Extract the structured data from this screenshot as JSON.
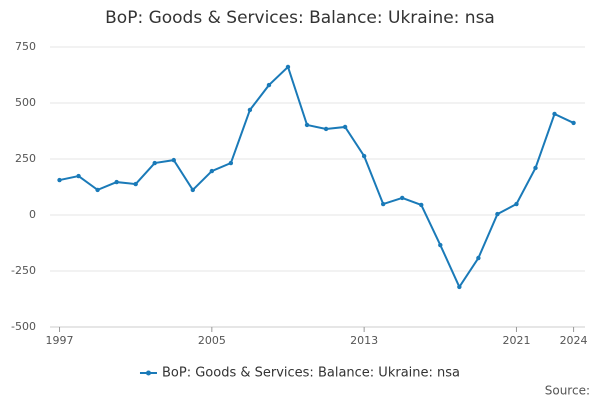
{
  "chart_data": {
    "type": "line",
    "title": "BoP: Goods & Services: Balance: Ukraine: nsa",
    "x": [
      1997,
      1998,
      1999,
      2000,
      2001,
      2002,
      2003,
      2004,
      2005,
      2006,
      2007,
      2008,
      2009,
      2010,
      2011,
      2012,
      2013,
      2014,
      2015,
      2016,
      2017,
      2018,
      2019,
      2020,
      2021,
      2022,
      2023,
      2024
    ],
    "series": [
      {
        "name": "BoP: Goods & Services: Balance: Ukraine: nsa",
        "color": "#1a7ab8",
        "values": [
          156,
          174,
          112,
          147,
          138,
          232,
          245,
          112,
          196,
          232,
          469,
          580,
          661,
          402,
          384,
          393,
          263,
          49,
          76,
          45,
          -134,
          -321,
          -192,
          4,
          49,
          210,
          451,
          411
        ]
      }
    ],
    "xlim": [
      1996.5,
      2024.6
    ],
    "xticks": [
      1997,
      2005,
      2013,
      2021,
      2024
    ],
    "ylim": [
      -500,
      750
    ],
    "yticks": [
      -500,
      -250,
      0,
      250,
      500,
      750
    ],
    "grid": true,
    "legend": "bottom",
    "source": "Source:"
  }
}
